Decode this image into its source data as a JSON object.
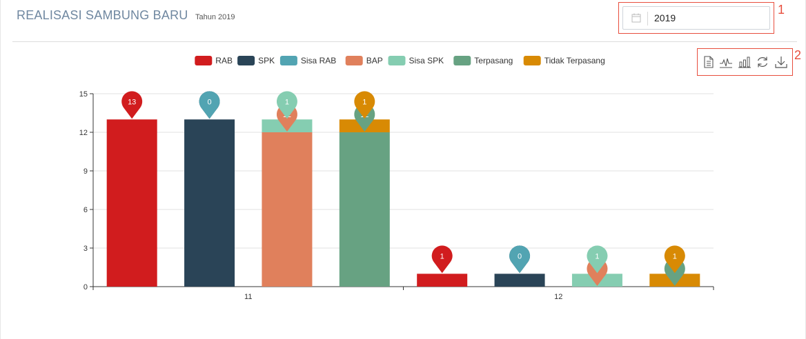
{
  "header": {
    "title": "REALISASI SAMBUNG BARU",
    "subtitle": "Tahun 2019"
  },
  "filter": {
    "year_value": "2019",
    "icon": "calendar-icon"
  },
  "annotations": [
    "1",
    "2"
  ],
  "toolbox": {
    "tools": [
      {
        "name": "data-view-icon",
        "tooltip": "Data View"
      },
      {
        "name": "line-chart-icon",
        "tooltip": "Line"
      },
      {
        "name": "bar-chart-icon",
        "tooltip": "Bar"
      },
      {
        "name": "restore-icon",
        "tooltip": "Restore"
      },
      {
        "name": "download-icon",
        "tooltip": "Save as Image"
      }
    ]
  },
  "colors": {
    "title": "#6f87a0",
    "annotation": "#e84d3c"
  },
  "chart_data": {
    "type": "bar",
    "categories": [
      "11",
      "12"
    ],
    "ylim": [
      0,
      15
    ],
    "yticks": [
      0,
      3,
      6,
      9,
      12,
      15
    ],
    "legend_position": "top",
    "grid": true,
    "series": [
      {
        "name": "RAB",
        "color": "#d11c1e",
        "values": [
          13,
          1
        ],
        "stack": "rab"
      },
      {
        "name": "SPK",
        "color": "#2a4457",
        "values": [
          13,
          1
        ],
        "stack": "spk"
      },
      {
        "name": "Sisa RAB",
        "color": "#52a4b2",
        "values": [
          0,
          0
        ],
        "stack": "spk"
      },
      {
        "name": "BAP",
        "color": "#e0805c",
        "values": [
          12,
          0
        ],
        "stack": "bap"
      },
      {
        "name": "Sisa SPK",
        "color": "#85cdb1",
        "values": [
          1,
          1
        ],
        "stack": "bap"
      },
      {
        "name": "Terpasang",
        "color": "#67a282",
        "values": [
          12,
          0
        ],
        "stack": "terpasang"
      },
      {
        "name": "Tidak Terpasang",
        "color": "#d88a04",
        "values": [
          1,
          1
        ],
        "stack": "terpasang"
      }
    ]
  }
}
